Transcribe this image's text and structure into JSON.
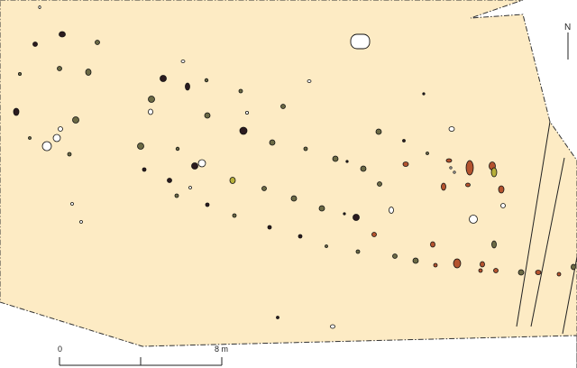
{
  "map": {
    "colors": {
      "excavation_area": "#fdebc4",
      "outline": "#333333",
      "feature_dark": "#2b1b1f",
      "feature_olive": "#6b6a45",
      "feature_red": "#b4532e",
      "feature_yellow": "#b7b03a",
      "feature_empty": "#ffffff"
    },
    "north_arrow": {
      "label": "N"
    },
    "scale_bar": {
      "labels": [
        "0",
        "8 m"
      ]
    }
  }
}
